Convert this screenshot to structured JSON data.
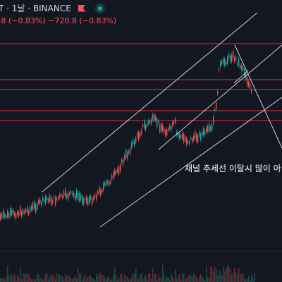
{
  "header": {
    "symbol_line": "T · 1날 · BINANCE",
    "change_line": ".8 (−0.83%)  −720.8 (−0.83%)",
    "flag_icon": "flag-icon",
    "status_icon": "live-status-icon"
  },
  "annotation": {
    "text": "채널 추세선 이탈시 많이 아"
  },
  "colors": {
    "background": "#131722",
    "up": "#26a69a",
    "down": "#ef5350",
    "horizontal_lines": "#f23645",
    "trendlines": "#e0e3eb",
    "volume": "#5c2b34"
  }
}
